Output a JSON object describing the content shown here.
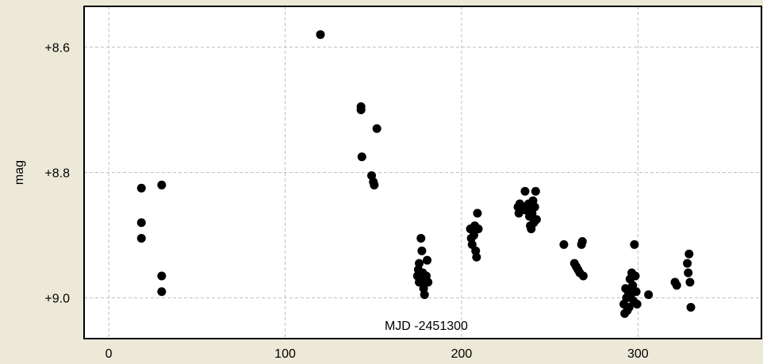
{
  "chart_data": {
    "type": "scatter",
    "xlabel": "MJD -2451300",
    "ylabel": "mag",
    "xlim": [
      -14,
      370
    ],
    "ylim": [
      9.065,
      8.535
    ],
    "y_inverted": true,
    "grid": true,
    "x_ticks": [
      0,
      100,
      200,
      300
    ],
    "x_tick_labels": [
      "0",
      "100",
      "200",
      "300"
    ],
    "y_ticks": [
      8.6,
      8.8,
      9.0
    ],
    "y_tick_labels": [
      "+8.6",
      "+8.8",
      "+9.0"
    ],
    "marker_color": "#000000",
    "colors": {
      "background": "#ece9d8",
      "plot_area": "#ffffff",
      "grid": "#c0c0c0"
    },
    "series": [
      {
        "x": [
          18.5,
          18.5,
          18.5,
          30,
          30,
          30,
          120,
          143,
          143,
          143.5,
          149,
          150,
          150.5,
          152,
          175,
          175.5,
          176,
          176,
          177,
          177,
          177.5,
          178,
          178.5,
          179,
          179,
          180,
          180.5,
          181,
          205,
          205.5,
          206,
          207,
          207.5,
          208,
          208.5,
          209,
          209.5,
          232,
          232.5,
          233,
          235,
          236,
          236.5,
          237,
          238,
          238.5,
          239,
          239.5,
          240,
          240.5,
          241,
          241.5,
          242,
          242.5,
          258,
          264,
          265,
          266,
          267,
          268,
          268.5,
          269,
          292,
          292.5,
          293,
          293.5,
          294,
          294.5,
          295,
          295.5,
          296,
          296.5,
          297,
          297.5,
          298,
          298.5,
          299,
          299.5,
          306,
          321,
          322,
          328,
          328.5,
          329,
          329.5,
          330
        ],
        "y": [
          8.825,
          8.88,
          8.905,
          8.82,
          8.965,
          8.99,
          8.58,
          8.695,
          8.7,
          8.775,
          8.805,
          8.815,
          8.82,
          8.73,
          8.965,
          8.955,
          8.975,
          8.945,
          8.97,
          8.905,
          8.925,
          8.96,
          8.985,
          8.975,
          8.995,
          8.965,
          8.94,
          8.975,
          8.89,
          8.905,
          8.915,
          8.9,
          8.885,
          8.925,
          8.935,
          8.865,
          8.89,
          8.855,
          8.865,
          8.85,
          8.855,
          8.83,
          8.86,
          8.855,
          8.85,
          8.87,
          8.885,
          8.89,
          8.865,
          8.845,
          8.88,
          8.855,
          8.83,
          8.875,
          8.915,
          8.945,
          8.95,
          8.955,
          8.96,
          8.915,
          8.91,
          8.965,
          9.01,
          9.025,
          8.985,
          9.0,
          9.02,
          8.99,
          9.015,
          8.97,
          8.995,
          8.96,
          8.98,
          9.005,
          8.915,
          8.965,
          8.99,
          9.01,
          8.995,
          8.975,
          8.98,
          8.945,
          8.96,
          8.93,
          8.975,
          9.015
        ]
      }
    ]
  }
}
